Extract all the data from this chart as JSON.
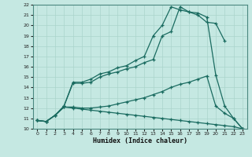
{
  "xlabel": "Humidex (Indice chaleur)",
  "xlim": [
    -0.5,
    23.5
  ],
  "ylim": [
    10,
    22
  ],
  "yticks": [
    10,
    11,
    12,
    13,
    14,
    15,
    16,
    17,
    18,
    19,
    20,
    21,
    22
  ],
  "xticks": [
    0,
    1,
    2,
    3,
    4,
    5,
    6,
    7,
    8,
    9,
    10,
    11,
    12,
    13,
    14,
    15,
    16,
    17,
    18,
    19,
    20,
    21,
    22,
    23
  ],
  "bg_color": "#c5e8e2",
  "grid_color": "#aad4cc",
  "line_color": "#1a6b60",
  "lines": [
    {
      "x": [
        0,
        1,
        2,
        3,
        4,
        5,
        6,
        7,
        8,
        9,
        10,
        11,
        12,
        13,
        14,
        15,
        16,
        17,
        18,
        19,
        20,
        21
      ],
      "y": [
        10.8,
        10.7,
        11.3,
        12.2,
        14.5,
        14.5,
        14.8,
        15.3,
        15.5,
        15.9,
        16.1,
        16.6,
        17.0,
        19.0,
        20.0,
        21.8,
        21.5,
        21.3,
        21.0,
        20.3,
        20.2,
        18.5
      ]
    },
    {
      "x": [
        0,
        1,
        2,
        3,
        4,
        5,
        6,
        7,
        8,
        9,
        10,
        11,
        12,
        13,
        14,
        15,
        16,
        17,
        18,
        19,
        20,
        21,
        22,
        23
      ],
      "y": [
        10.8,
        10.7,
        11.3,
        12.2,
        14.4,
        14.4,
        14.5,
        15.0,
        15.3,
        15.5,
        15.8,
        16.0,
        16.4,
        16.7,
        19.0,
        19.4,
        21.8,
        21.3,
        21.2,
        20.8,
        15.2,
        12.2,
        11.0,
        10.0
      ]
    },
    {
      "x": [
        0,
        1,
        2,
        3,
        4,
        5,
        6,
        7,
        8,
        9,
        10,
        11,
        12,
        13,
        14,
        15,
        16,
        17,
        18,
        19,
        20,
        21,
        22,
        23
      ],
      "y": [
        10.8,
        10.7,
        11.3,
        12.1,
        12.1,
        12.0,
        12.0,
        12.1,
        12.2,
        12.4,
        12.6,
        12.8,
        13.0,
        13.3,
        13.6,
        14.0,
        14.3,
        14.5,
        14.8,
        15.1,
        12.2,
        11.5,
        11.0,
        10.0
      ]
    },
    {
      "x": [
        0,
        1,
        2,
        3,
        4,
        5,
        6,
        7,
        8,
        9,
        10,
        11,
        12,
        13,
        14,
        15,
        16,
        17,
        18,
        19,
        20,
        21,
        22,
        23
      ],
      "y": [
        10.8,
        10.7,
        11.3,
        12.1,
        12.0,
        11.9,
        11.8,
        11.7,
        11.6,
        11.5,
        11.4,
        11.3,
        11.2,
        11.1,
        11.0,
        10.9,
        10.8,
        10.7,
        10.6,
        10.5,
        10.4,
        10.3,
        10.2,
        10.0
      ]
    }
  ]
}
